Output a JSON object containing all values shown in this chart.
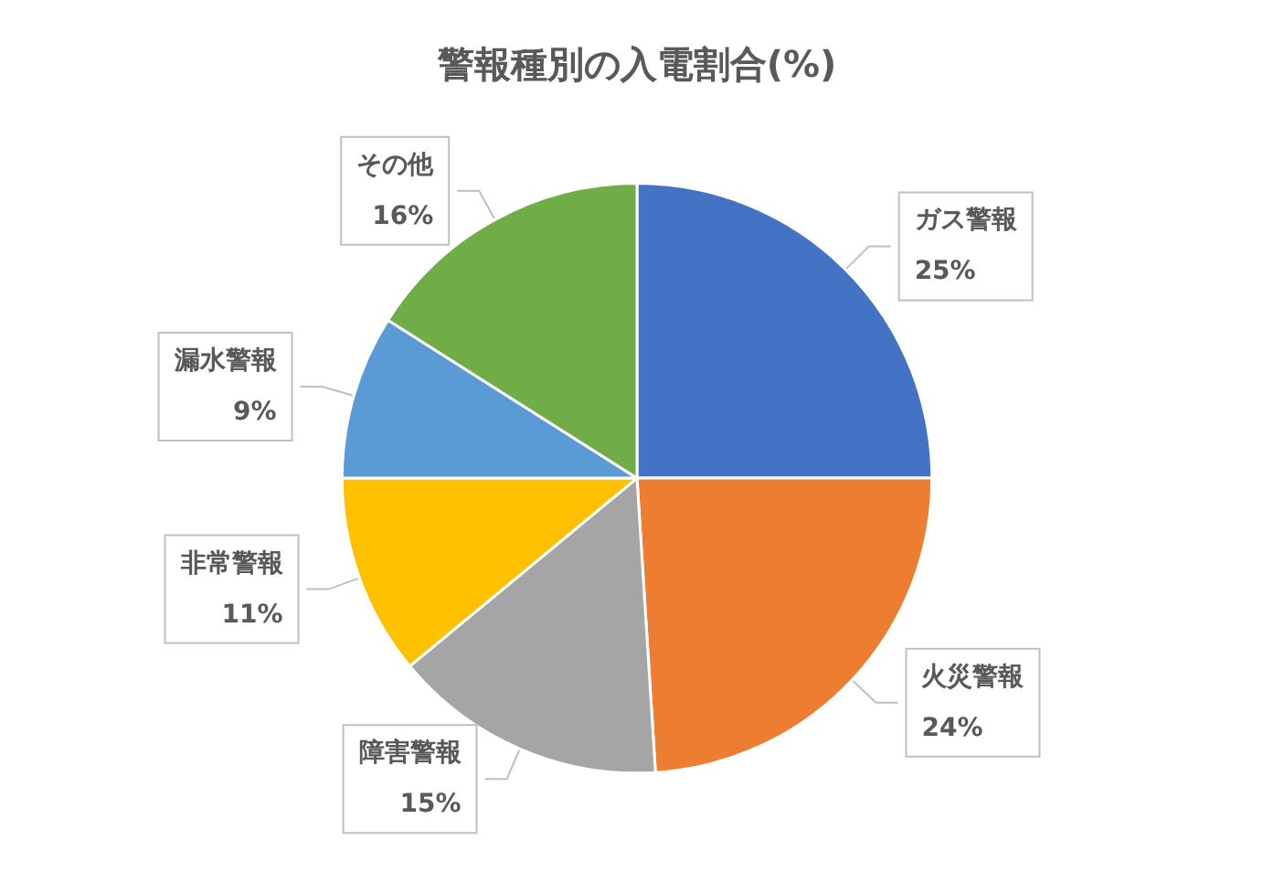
{
  "chart_data": {
    "type": "pie",
    "title": "警報種別の入電割合(%)",
    "categories": [
      "ガス警報",
      "火災警報",
      "障害警報",
      "非常警報",
      "漏水警報",
      "その他"
    ],
    "values": [
      25,
      24,
      15,
      11,
      9,
      16
    ],
    "value_labels": [
      "25%",
      "24%",
      "15%",
      "11%",
      "9%",
      "16%"
    ],
    "colors": [
      "#4472c4",
      "#ed7d31",
      "#a5a5a5",
      "#ffc000",
      "#5b9bd5",
      "#70ad47"
    ],
    "legend": false
  }
}
